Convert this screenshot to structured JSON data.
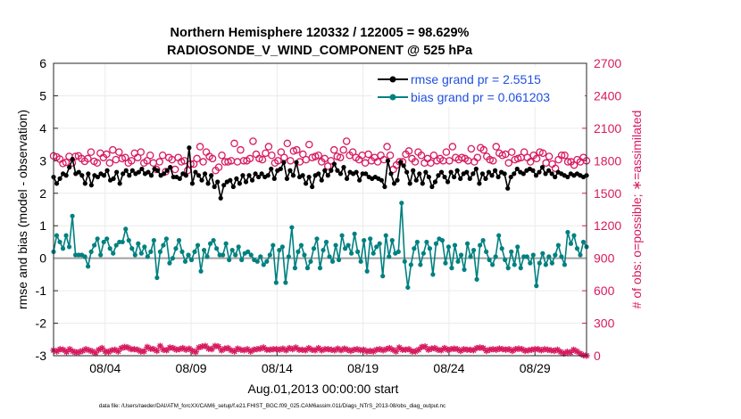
{
  "chart_data": {
    "type": "line",
    "title": "Northern Hemisphere 120332 / 122005 = 98.629%",
    "subtitle": "RADIOSONDE_V_WIND_COMPONENT @ 525 hPa",
    "xlabel": "Aug.01,2013 00:00:00 start",
    "ylabel": "rmse and bias (model - observation)",
    "y2label": "# of obs: o=possible; ∗=assimilated",
    "footer": "data file: /Users/raeder/DAI/ATM_forcXX/CAM6_setup/f.e21.FHIST_BGC.f09_025.CAM6assim.011/Diags_NTrS_2013-08/obs_diag_output.nc",
    "xlim": [
      1,
      32
    ],
    "ylim": [
      -3,
      6
    ],
    "y2lim": [
      0,
      2700
    ],
    "x_ticks": [
      {
        "x": 4,
        "label": "08/04"
      },
      {
        "x": 9,
        "label": "08/09"
      },
      {
        "x": 14,
        "label": "08/14"
      },
      {
        "x": 19,
        "label": "08/19"
      },
      {
        "x": 24,
        "label": "08/24"
      },
      {
        "x": 29,
        "label": "08/29"
      }
    ],
    "y_ticks": [
      "-3",
      "-2",
      "-1",
      "0",
      "1",
      "2",
      "3",
      "4",
      "5",
      "6"
    ],
    "y2_ticks": [
      "0",
      "300",
      "600",
      "900",
      "1200",
      "1500",
      "1800",
      "2100",
      "2400",
      "2700"
    ],
    "grid": true,
    "legend_position": "top-right",
    "legend": [
      "rmse grand pr = 2.5515",
      "bias grand pr = 0.061203"
    ],
    "colors": {
      "rmse": "#000000",
      "bias": "#008080",
      "obs": "#d81b60",
      "zero_line": "#a0a0a0",
      "axis2": "#d81b60",
      "legend_text": "#1f4fe0"
    },
    "series": [
      {
        "name": "rmse",
        "values": [
          2.5,
          2.3,
          2.45,
          2.6,
          2.55,
          2.8,
          3.05,
          2.6,
          2.65,
          2.55,
          2.3,
          2.6,
          2.25,
          2.55,
          2.5,
          2.6,
          2.55,
          2.7,
          2.4,
          2.45,
          2.65,
          2.3,
          2.6,
          2.7,
          2.55,
          2.7,
          2.6,
          2.65,
          2.75,
          2.6,
          2.65,
          2.55,
          2.75,
          2.7,
          2.55,
          2.6,
          2.7,
          2.8,
          2.5,
          2.5,
          2.45,
          2.6,
          2.55,
          3.4,
          2.3,
          2.65,
          2.55,
          2.4,
          2.6,
          2.3,
          2.55,
          2.2,
          2.35,
          1.85,
          2.25,
          2.35,
          2.4,
          2.2,
          2.45,
          2.3,
          2.55,
          2.35,
          2.55,
          2.4,
          2.6,
          2.5,
          2.6,
          2.5,
          2.55,
          2.75,
          2.45,
          2.7,
          2.75,
          2.95,
          2.45,
          2.7,
          2.55,
          2.95,
          2.5,
          2.55,
          2.3,
          2.5,
          2.2,
          2.55,
          2.6,
          2.4,
          2.7,
          2.55,
          2.7,
          2.9,
          2.7,
          2.6,
          2.8,
          2.45,
          2.65,
          2.6,
          2.65,
          2.4,
          2.6,
          2.6,
          2.5,
          2.45,
          2.5,
          2.45,
          2.4,
          2.2,
          3.0,
          2.6,
          2.3,
          2.4,
          2.95,
          2.85,
          2.65,
          2.3,
          2.7,
          2.4,
          2.6,
          2.3,
          2.65,
          2.5,
          2.2,
          2.35,
          2.55,
          2.65,
          2.5,
          2.35,
          2.65,
          2.5,
          2.7,
          2.45,
          2.6,
          2.65,
          2.45,
          2.6,
          2.75,
          2.3,
          2.6,
          2.45,
          2.65,
          2.55,
          2.7,
          2.5,
          2.65,
          2.6,
          2.15,
          2.5,
          2.6,
          2.75,
          2.65,
          2.6,
          2.7,
          2.75,
          2.7,
          2.55,
          2.65,
          2.8,
          2.6,
          2.7,
          2.6,
          2.5,
          2.65,
          2.6,
          2.55,
          2.5,
          2.6,
          2.55,
          2.6,
          2.55,
          2.5,
          2.55
        ]
      },
      {
        "name": "bias",
        "values": [
          0.2,
          0.7,
          0.5,
          0.3,
          0.7,
          0.35,
          1.3,
          0.1,
          0.1,
          0.1,
          0.05,
          -0.25,
          0.2,
          0.4,
          0.6,
          0.1,
          0.5,
          0.6,
          0.3,
          0.15,
          0.4,
          0.5,
          0.5,
          0.9,
          0.55,
          0.3,
          0.1,
          0.45,
          0.15,
          0.35,
          0.05,
          0.2,
          0.55,
          -0.6,
          0.2,
          0.4,
          0.6,
          -0.15,
          0.0,
          0.3,
          0.55,
          0.2,
          -0.1,
          0.1,
          -0.05,
          0.2,
          0.4,
          -0.4,
          0.25,
          0.05,
          0.45,
          0.55,
          0.3,
          0.1,
          0.1,
          0.45,
          -0.05,
          0.25,
          0.1,
          0.35,
          -0.05,
          0.15,
          0.2,
          0.1,
          -0.05,
          -0.1,
          0.05,
          -0.2,
          -0.1,
          0.1,
          0.4,
          -0.75,
          0.25,
          0.35,
          -0.75,
          0.05,
          0.95,
          -0.3,
          0.2,
          0.4,
          0.1,
          -0.3,
          -0.1,
          0.3,
          0.6,
          -0.3,
          0.25,
          0.5,
          0.05,
          -0.1,
          0.4,
          -0.05,
          0.7,
          0.3,
          0.4,
          0.15,
          0.75,
          0.2,
          -0.1,
          0.55,
          -0.4,
          0.6,
          0.15,
          0.35,
          0.45,
          -0.55,
          0.7,
          0.05,
          0.55,
          0.15,
          0.2,
          1.7,
          -0.1,
          -0.9,
          -0.2,
          0.3,
          0.5,
          -0.2,
          0.15,
          0.5,
          0.3,
          -0.5,
          0.45,
          0.6,
          0.55,
          -0.15,
          0.35,
          -0.3,
          0.4,
          -0.1,
          0.1,
          -0.35,
          0.45,
          0.05,
          0.25,
          -0.65,
          0.4,
          0.55,
          0.2,
          -0.05,
          -0.2,
          0.05,
          0.7,
          0.3,
          -0.05,
          -0.3,
          0.2,
          -0.2,
          0.35,
          -0.3,
          0.05,
          0.05,
          -0.15,
          0.1,
          -0.85,
          -0.15,
          0.15,
          -0.2,
          0.05,
          -0.15,
          0.1,
          0.4,
          0.05,
          -0.2,
          0.8,
          0.45,
          0.7,
          0.3,
          0.1,
          0.5,
          0.35
        ]
      },
      {
        "name": "obs_possible",
        "marker": "o",
        "values": [
          1845,
          1835,
          1815,
          1775,
          1785,
          1840,
          1780,
          1840,
          1845,
          1820,
          1795,
          1820,
          1880,
          1795,
          1780,
          1870,
          1830,
          1860,
          1780,
          1900,
          1810,
          1880,
          1820,
          1830,
          1780,
          1800,
          1870,
          1830,
          1880,
          1780,
          1800,
          1850,
          1780,
          1720,
          1790,
          1850,
          1700,
          1830,
          1810,
          1720,
          1830,
          1790,
          1800,
          1710,
          1770,
          1770,
          1820,
          1930,
          1790,
          1880,
          1840,
          1820,
          1710,
          1740,
          1850,
          1790,
          1790,
          1800,
          1960,
          1790,
          1900,
          1800,
          1800,
          1820,
          1980,
          1860,
          1820,
          1810,
          1870,
          1930,
          1850,
          1780,
          1800,
          1880,
          1830,
          1960,
          1800,
          1890,
          1900,
          1790,
          1860,
          1810,
          1950,
          1830,
          1840,
          1850,
          1790,
          1820,
          1750,
          1800,
          1900,
          1840,
          1830,
          1900,
          1980,
          1850,
          1880,
          1830,
          1810,
          1850,
          1780,
          1860,
          1800,
          1830,
          1790,
          1850,
          1810,
          1930,
          1850,
          1720,
          1760,
          1790,
          1790,
          1860,
          1890,
          1820,
          1790,
          1880,
          1850,
          1780,
          1820,
          1780,
          1850,
          1800,
          1820,
          1800,
          1880,
          1800,
          1930,
          1830,
          1810,
          1830,
          1820,
          1800,
          1910,
          1790,
          1830,
          1920,
          1900,
          1840,
          1810,
          1800,
          1930,
          1870,
          1850,
          1860,
          1780,
          1880,
          1810,
          1820,
          1830,
          1880,
          1830,
          1790,
          1850,
          1820,
          1880,
          1870,
          1780,
          1840,
          1770,
          1730,
          1810,
          1850,
          1850,
          1790,
          1790,
          1760,
          1810,
          1790,
          1830,
          1800
        ]
      },
      {
        "name": "obs_assimilated",
        "marker": "*",
        "values": [
          50,
          40,
          60,
          55,
          35,
          60,
          40,
          30,
          35,
          45,
          60,
          50,
          40,
          25,
          55,
          70,
          40,
          35,
          50,
          55,
          40,
          70,
          80,
          75,
          60,
          60,
          55,
          40,
          40,
          80,
          65,
          60,
          45,
          90,
          55,
          50,
          75,
          70,
          55,
          60,
          70,
          55,
          65,
          45,
          35,
          75,
          85,
          90,
          65,
          60,
          90,
          85,
          50,
          65,
          70,
          50,
          40,
          65,
          55,
          50,
          60,
          40,
          55,
          60,
          65,
          75,
          55,
          55,
          60,
          60,
          55,
          65,
          50,
          70,
          60,
          75,
          55,
          55,
          50,
          70,
          55,
          50,
          70,
          50,
          60,
          60,
          55,
          50,
          65,
          50,
          65,
          55,
          45,
          55,
          60,
          50,
          55,
          40,
          45,
          40,
          55,
          60,
          50,
          60,
          70,
          55,
          40,
          75,
          55,
          55,
          60,
          40,
          40,
          55,
          80,
          85,
          55,
          65,
          70,
          55,
          50,
          70,
          55,
          60,
          65,
          60,
          45,
          60,
          55,
          55,
          50,
          70,
          75,
          70,
          45,
          55,
          60,
          55,
          65,
          60,
          55,
          60,
          45,
          60,
          65,
          60,
          45,
          50,
          55,
          60,
          60,
          50,
          60,
          55,
          50,
          45,
          55,
          35,
          20,
          35,
          30,
          55,
          40,
          20,
          5,
          0
        ]
      }
    ]
  }
}
